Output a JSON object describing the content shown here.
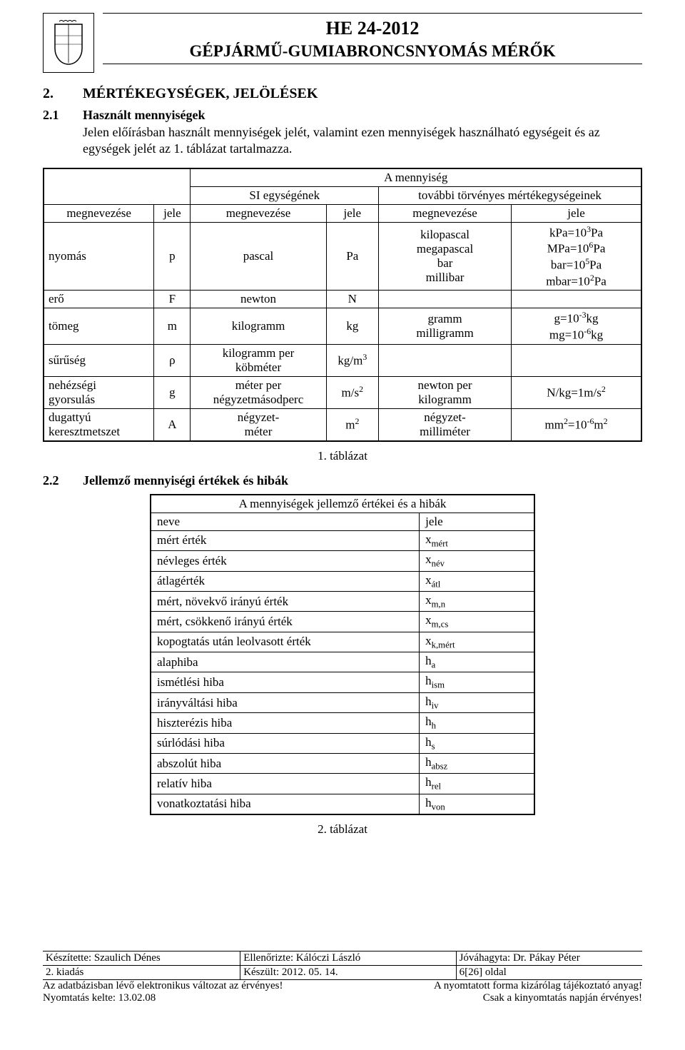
{
  "header": {
    "code": "HE 24-2012",
    "title": "GÉPJÁRMŰ-GUMIABRONCSNYOMÁS MÉRŐK"
  },
  "section": {
    "num": "2.",
    "title": "MÉRTÉKEGYSÉGEK, JELÖLÉSEK"
  },
  "sub21": {
    "num": "2.1",
    "title": "Használt mennyiségek",
    "para": "Jelen előírásban használt mennyiségek jelét, valamint ezen mennyiségek használható egységeit és az egységek jelét az 1. táblázat tartalmazza."
  },
  "t1": {
    "h_qty": "A mennyiség",
    "h_name": "megnevezése",
    "h_sym": "jele",
    "h_si": "SI egységének",
    "h_other": "további törvényes mértékegységeinek",
    "h_name2": "megnevezése",
    "h_sym2": "jele",
    "h_name3": "megnevezése",
    "h_sym3": "jele",
    "r1": {
      "name": "nyomás",
      "sym": "p",
      "si_name": "pascal",
      "si_sym": "Pa",
      "o_name_html": "kilopascal<br>megapascal<br>bar<br>millibar",
      "o_sym_html": "kPa=10<sup>3</sup>Pa<br>MPa=10<sup>6</sup>Pa<br>bar=10<sup>5</sup>Pa<br>mbar=10<sup>2</sup>Pa"
    },
    "r2": {
      "name": "erő",
      "sym": "F",
      "si_name": "newton",
      "si_sym": "N",
      "o_name_html": "",
      "o_sym_html": ""
    },
    "r3": {
      "name": "tömeg",
      "sym": "m",
      "si_name": "kilogramm",
      "si_sym": "kg",
      "o_name_html": "gramm<br>milligramm",
      "o_sym_html": "g=10<sup>-3</sup>kg<br>mg=10<sup>-6</sup>kg"
    },
    "r4": {
      "name": "sűrűség",
      "sym": "ρ",
      "si_name_html": "kilogramm per<br>köbméter",
      "si_sym_html": "kg/m<sup>3</sup>",
      "o_name_html": "",
      "o_sym_html": ""
    },
    "r5": {
      "name_html": "nehézségi<br>gyorsulás",
      "sym": "g",
      "si_name_html": "méter per<br>négyzetmásodperc",
      "si_sym_html": "m/s<sup>2</sup>",
      "o_name_html": "newton per<br>kilogramm",
      "o_sym_html": "N/kg=1m/s<sup>2</sup>"
    },
    "r6": {
      "name_html": "dugattyú<br>keresztmetszet",
      "sym": "A",
      "si_name_html": "négyzet-<br>méter",
      "si_sym_html": "m<sup>2</sup>",
      "o_name_html": "négyzet-<br>milliméter",
      "o_sym_html": "mm<sup>2</sup>=10<sup>-6</sup>m<sup>2</sup>"
    }
  },
  "cap1": "1. táblázat",
  "sub22": {
    "num": "2.2",
    "title": "Jellemző mennyiségi értékek és hibák"
  },
  "t2": {
    "head": "A mennyiségek jellemző értékei és a hibák",
    "h_name": "neve",
    "h_sym": "jele",
    "rows": [
      {
        "n": "mért érték",
        "s": "x<sub>mért</sub>"
      },
      {
        "n": "névleges érték",
        "s": "x<sub>név</sub>"
      },
      {
        "n": "átlagérték",
        "s": "x<sub>átl</sub>"
      },
      {
        "n": "mért, növekvő irányú érték",
        "s": "x<sub>m,n</sub>"
      },
      {
        "n": "mért, csökkenő irányú érték",
        "s": "x<sub>m,cs</sub>"
      },
      {
        "n": "kopogtatás után leolvasott érték",
        "s": "x<sub>k,mért</sub>"
      },
      {
        "n": "alaphiba",
        "s": "h<sub>a</sub>"
      },
      {
        "n": "ismétlési hiba",
        "s": "h<sub>ism</sub>"
      },
      {
        "n": "irányváltási hiba",
        "s": "h<sub>iv</sub>"
      },
      {
        "n": "hiszterézis hiba",
        "s": "h<sub>h</sub>"
      },
      {
        "n": "súrlódási hiba",
        "s": "h<sub>s</sub>"
      },
      {
        "n": "abszolút hiba",
        "s": "h<sub>absz</sub>"
      },
      {
        "n": "relatív hiba",
        "s": "h<sub>rel</sub>"
      },
      {
        "n": "vonatkoztatási hiba",
        "s": "h<sub>von</sub>"
      }
    ]
  },
  "cap2": "2. táblázat",
  "footer": {
    "made": "Készítette: Szaulich Dénes",
    "checked": "Ellenőrizte: Kálóczi László",
    "approved": "Jóváhagyta: Dr. Pákay Péter",
    "edition": "2. kiadás",
    "date": "Készült: 2012. 05. 14.",
    "page": "6[26] oldal",
    "l1": "Az adatbázisban lévő elektronikus változat az érvényes!",
    "l2": "Nyomtatás kelte:    13.02.08",
    "r1": "A nyomtatott forma kizárólag tájékoztató anyag!",
    "r2": "Csak a kinyomtatás napján érvényes!"
  }
}
